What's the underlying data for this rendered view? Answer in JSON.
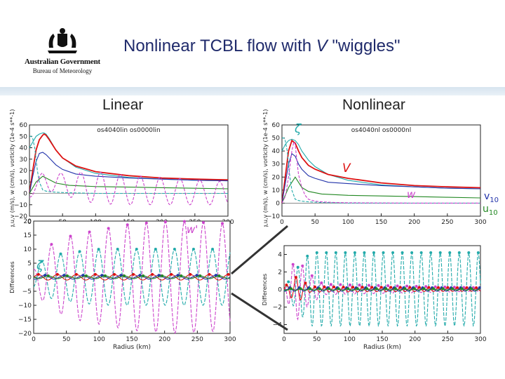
{
  "header": {
    "logo_line1": "Australian Government",
    "logo_line2": "Bureau of Meteorology",
    "title_pre": "Nonlinear TCBL flow with ",
    "title_var": "V",
    "title_post": " \"wiggles\""
  },
  "sections": {
    "left": "Linear",
    "right": "Nonlinear"
  },
  "annotations": {
    "zeta_top": "ζ",
    "V_label": "V",
    "w_label": "w",
    "w_prime": "w'",
    "zeta_left": "ζ",
    "v10_main": "v",
    "v10_sub": "10",
    "u10_main": "u",
    "u10_sub": "10"
  },
  "colors": {
    "V": "#dd1111",
    "w": "#cc44cc",
    "zeta": "#22aaaa",
    "v10": "#2233aa",
    "u10": "#228822",
    "title": "#1f2a6b"
  },
  "chart_data": [
    {
      "id": "linear-top",
      "type": "line",
      "title": "os4040lin os0000lin",
      "xlabel": "",
      "ylabel": "vg,u,v (m/s), w (cm/s), vorticity (1e-4 s**-1)",
      "xlim": [
        0,
        300
      ],
      "ylim": [
        -20,
        60
      ],
      "xticks": [
        0,
        50,
        100,
        150,
        200,
        250,
        300
      ],
      "yticks": [
        -20,
        -10,
        0,
        10,
        20,
        30,
        40,
        50,
        60
      ],
      "series": [
        {
          "key": "vg",
          "x": [
            0,
            5,
            10,
            15,
            20,
            22,
            25,
            30,
            40,
            50,
            70,
            100,
            150,
            200,
            250,
            300
          ],
          "y": [
            40,
            45,
            50,
            52,
            53,
            53,
            52,
            48,
            38,
            31,
            23,
            17.5,
            14,
            12.5,
            11.5,
            11
          ]
        },
        {
          "key": "V",
          "x": [
            0,
            5,
            10,
            15,
            20,
            22,
            25,
            30,
            40,
            50,
            70,
            100,
            150,
            200,
            250,
            300
          ],
          "y": [
            0,
            20,
            38,
            47,
            51,
            52,
            51,
            47,
            38,
            31,
            24,
            19,
            15.5,
            13.5,
            12.5,
            11.8
          ]
        },
        {
          "key": "v10",
          "x": [
            0,
            5,
            10,
            15,
            20,
            25,
            30,
            40,
            50,
            70,
            100,
            150,
            200,
            250,
            300
          ],
          "y": [
            0,
            15,
            28,
            35,
            36,
            34,
            31,
            25,
            21,
            17,
            15,
            13.5,
            12.5,
            11.5,
            11
          ]
        },
        {
          "key": "u10",
          "x": [
            0,
            10,
            20,
            30,
            40,
            60,
            100,
            150,
            200,
            250,
            300
          ],
          "y": [
            0,
            10,
            15,
            12,
            9,
            7,
            6,
            5.5,
            5,
            4.5,
            4
          ]
        },
        {
          "key": "zeta",
          "x": [
            0,
            3,
            5,
            8,
            10,
            12,
            15,
            20,
            25,
            30,
            40,
            60,
            100,
            150,
            200,
            250,
            300
          ],
          "y": [
            50,
            50,
            48,
            40,
            30,
            20,
            10,
            3,
            2,
            1.5,
            1,
            0.5,
            0,
            0,
            0,
            0,
            0
          ]
        }
      ],
      "wiggle": {
        "key": "w",
        "base": [
          [
            0,
            0
          ],
          [
            10,
            6
          ],
          [
            20,
            12
          ],
          [
            30,
            10
          ],
          [
            50,
            8
          ],
          [
            100,
            5
          ],
          [
            150,
            3
          ],
          [
            200,
            2
          ],
          [
            250,
            1
          ],
          [
            300,
            0
          ]
        ],
        "amp": [
          [
            0,
            4
          ],
          [
            30,
            8
          ],
          [
            100,
            14
          ],
          [
            200,
            12
          ],
          [
            300,
            10
          ]
        ],
        "period": 30,
        "phase": 10
      }
    },
    {
      "id": "nonlinear-top",
      "type": "line",
      "title": "os4040nl os0000nl",
      "xlabel": "",
      "ylabel": "vg,u,v (m/s), w (cm/s), vorticity (1e-4 s**-1)",
      "xlim": [
        0,
        300
      ],
      "ylim": [
        -10,
        60
      ],
      "xticks": [
        0,
        50,
        100,
        150,
        200,
        250,
        300
      ],
      "yticks": [
        -10,
        0,
        10,
        20,
        30,
        40,
        50,
        60
      ],
      "series": [
        {
          "key": "vg",
          "x": [
            0,
            5,
            10,
            15,
            20,
            25,
            30,
            40,
            50,
            70,
            100,
            150,
            200,
            250,
            300
          ],
          "y": [
            40,
            45,
            48,
            49,
            48,
            45,
            40,
            33,
            28,
            22,
            17.5,
            14,
            12.5,
            11.5,
            11
          ]
        },
        {
          "key": "V",
          "x": [
            0,
            5,
            10,
            15,
            20,
            25,
            30,
            40,
            50,
            70,
            100,
            150,
            200,
            250,
            300
          ],
          "y": [
            0,
            20,
            40,
            48,
            46,
            40,
            35,
            29,
            26,
            22,
            19,
            15.5,
            13.5,
            12.5,
            11.8
          ]
        },
        {
          "key": "v10",
          "x": [
            0,
            5,
            10,
            15,
            20,
            25,
            30,
            40,
            50,
            70,
            100,
            150,
            200,
            250,
            300
          ],
          "y": [
            0,
            15,
            30,
            38,
            36,
            30,
            26,
            21,
            19,
            16,
            15,
            13.5,
            12.5,
            11.5,
            11
          ]
        },
        {
          "key": "u10",
          "x": [
            0,
            10,
            20,
            30,
            40,
            60,
            100,
            150,
            200,
            250,
            300
          ],
          "y": [
            0,
            12,
            20,
            12,
            9,
            7,
            6,
            5.5,
            5,
            4.5,
            4
          ]
        },
        {
          "key": "zeta",
          "x": [
            0,
            3,
            5,
            8,
            10,
            12,
            15,
            20,
            25,
            30,
            40,
            60,
            100,
            150,
            200,
            250,
            300
          ],
          "y": [
            50,
            50,
            48,
            40,
            30,
            20,
            10,
            3,
            2,
            1.5,
            1,
            0.5,
            0,
            0,
            0,
            0,
            0
          ]
        },
        {
          "key": "w",
          "x": [
            0,
            5,
            10,
            15,
            18,
            20,
            22,
            25,
            30,
            35,
            40,
            50,
            60,
            80,
            100,
            150,
            200,
            250,
            300
          ],
          "y": [
            0,
            5,
            20,
            40,
            47,
            45,
            35,
            22,
            12,
            6,
            3,
            1.5,
            1,
            0.5,
            0.3,
            0.1,
            0,
            0,
            0
          ]
        }
      ]
    },
    {
      "id": "linear-diff",
      "type": "line",
      "xlabel": "Radius (km)",
      "ylabel": "Differences",
      "xlim": [
        0,
        300
      ],
      "ylim": [
        -20,
        20
      ],
      "xticks": [
        0,
        50,
        100,
        150,
        200,
        250,
        300
      ],
      "yticks": [
        -20,
        -15,
        -10,
        -5,
        0,
        5,
        10,
        15,
        20
      ],
      "waves": [
        {
          "key": "w",
          "amp": [
            [
              0,
              3
            ],
            [
              20,
              11
            ],
            [
              60,
              15
            ],
            [
              150,
              19
            ],
            [
              220,
              20
            ],
            [
              300,
              19
            ]
          ],
          "period": 29,
          "phase": 20,
          "markers": true
        },
        {
          "key": "zeta",
          "amp": [
            [
              0,
              4
            ],
            [
              30,
              8
            ],
            [
              100,
              10
            ],
            [
              300,
              10
            ]
          ],
          "period": 29,
          "phase": 5,
          "markers": true
        },
        {
          "key": "V",
          "amp": [
            [
              0,
              1
            ],
            [
              300,
              1
            ]
          ],
          "period": 29,
          "phase": 0,
          "markers": true
        },
        {
          "key": "v10",
          "amp": [
            [
              0,
              0.7
            ],
            [
              300,
              0.7
            ]
          ],
          "period": 29,
          "phase": 10,
          "markers": true
        },
        {
          "key": "u10",
          "amp": [
            [
              0,
              0.5
            ],
            [
              300,
              0.5
            ]
          ],
          "period": 29,
          "phase": 15,
          "markers": true
        }
      ]
    },
    {
      "id": "nonlinear-diff",
      "type": "line",
      "xlabel": "Radius (km)",
      "ylabel": "Differences",
      "xlim": [
        0,
        300
      ],
      "ylim": [
        -5,
        5
      ],
      "xticks": [
        0,
        50,
        100,
        150,
        200,
        250,
        300
      ],
      "yticks": [
        -4,
        -2,
        0,
        2,
        4
      ],
      "waves": [
        {
          "key": "zeta",
          "amp": [
            [
              0,
              0
            ],
            [
              15,
              2
            ],
            [
              40,
              4.2
            ],
            [
              300,
              4.2
            ]
          ],
          "period": 14.5,
          "phase": 3,
          "markers": true
        },
        {
          "key": "w",
          "amp": [
            [
              0,
              0
            ],
            [
              10,
              2.5
            ],
            [
              20,
              3.5
            ],
            [
              35,
              2
            ],
            [
              60,
              0.6
            ],
            [
              300,
              0.2
            ]
          ],
          "period": 14.5,
          "phase": 10,
          "markers": true
        },
        {
          "key": "V",
          "amp": [
            [
              0,
              0.3
            ],
            [
              20,
              1.5
            ],
            [
              40,
              0.3
            ],
            [
              300,
              0.2
            ]
          ],
          "period": 14.5,
          "phase": 0,
          "markers": true
        },
        {
          "key": "v10",
          "amp": [
            [
              0,
              0.2
            ],
            [
              300,
              0.2
            ]
          ],
          "period": 14.5,
          "phase": 5,
          "markers": true
        },
        {
          "key": "u10",
          "amp": [
            [
              0,
              0.1
            ],
            [
              300,
              0.1
            ]
          ],
          "period": 14.5,
          "phase": 7,
          "markers": true
        }
      ]
    }
  ]
}
